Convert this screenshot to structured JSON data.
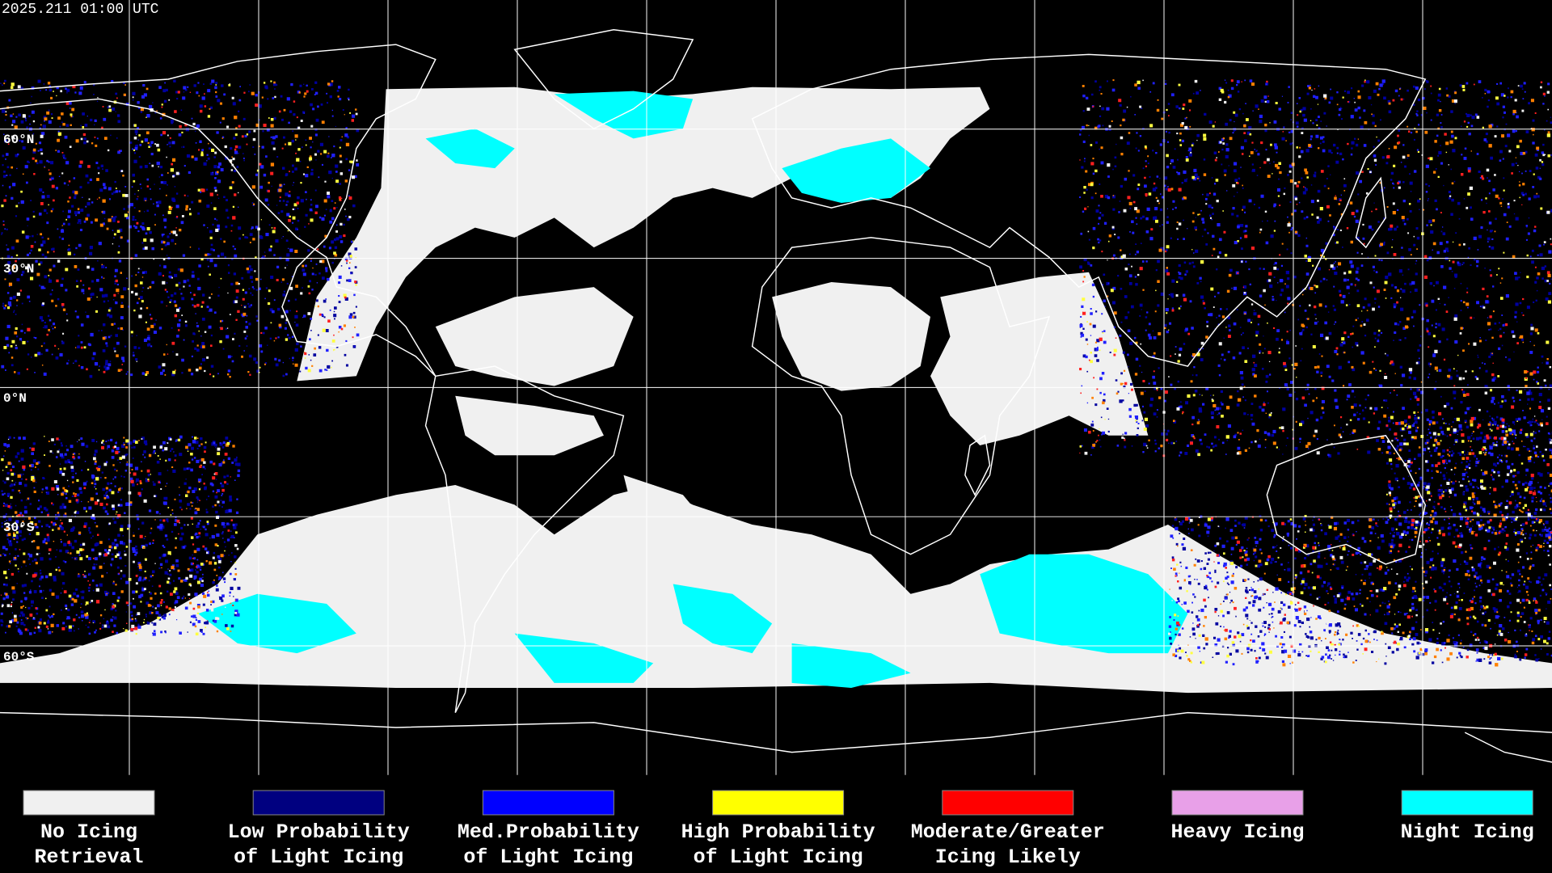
{
  "header": {
    "timestamp": "2025.211 01:00 UTC"
  },
  "map": {
    "latitude_labels": [
      "60°N",
      "30°N",
      "0°N",
      "30°S",
      "60°S"
    ]
  },
  "legend": [
    {
      "label": [
        "No Icing",
        "Retrieval"
      ],
      "color": "#f0f0f0"
    },
    {
      "label": [
        "Low Probability",
        "of Light Icing"
      ],
      "color": "#000080"
    },
    {
      "label": [
        "Med.Probability",
        "of Light Icing"
      ],
      "color": "#0000ff"
    },
    {
      "label": [
        "High Probability",
        "of Light Icing"
      ],
      "color": "#ffff00"
    },
    {
      "label": [
        "Moderate/Greater",
        "Icing Likely"
      ],
      "color": "#ff0000"
    },
    {
      "label": [
        "Heavy Icing"
      ],
      "color": "#e8a0e8"
    },
    {
      "label": [
        "Night Icing"
      ],
      "color": "#00ffff"
    }
  ]
}
